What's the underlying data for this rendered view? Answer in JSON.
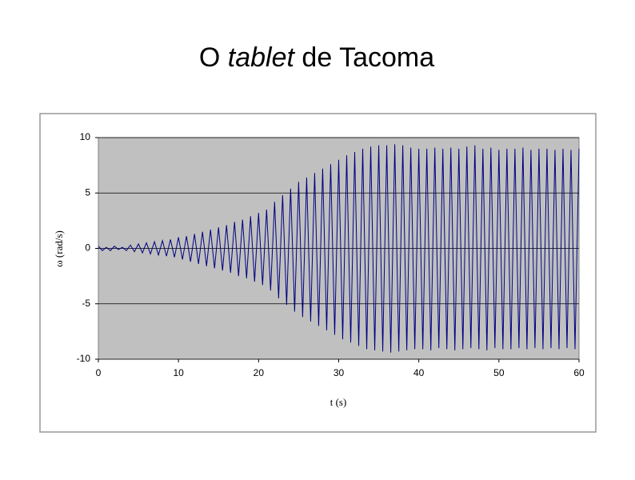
{
  "slide_title": {
    "before": "O",
    "emphasis": "tablet",
    "after": "de Tacoma"
  },
  "chart_data": {
    "type": "line",
    "x_label": "t (s)",
    "y_label": "ω (rad/s)",
    "xlim": [
      0,
      60
    ],
    "xticks": [
      0,
      10,
      20,
      30,
      40,
      50,
      60
    ],
    "ylim": [
      -10,
      10
    ],
    "yticks": [
      -10,
      -5,
      0,
      5,
      10
    ],
    "grid": true,
    "plot_background": "#c0c0c0",
    "series": [
      {
        "color": "#000080",
        "x": [
          0,
          0.5,
          1,
          1.5,
          2,
          2.5,
          3,
          3.5,
          4,
          4.5,
          5,
          5.5,
          6,
          6.5,
          7,
          7.5,
          8,
          8.5,
          9,
          9.5,
          10,
          10.5,
          11,
          11.5,
          12,
          12.5,
          13,
          13.5,
          14,
          14.5,
          15,
          15.5,
          16,
          16.5,
          17,
          17.5,
          18,
          18.5,
          19,
          19.5,
          20,
          20.5,
          21,
          21.5,
          22,
          22.5,
          23,
          23.5,
          24,
          24.5,
          25,
          25.5,
          26,
          26.5,
          27,
          27.5,
          28,
          28.5,
          29,
          29.5,
          30,
          30.5,
          31,
          31.5,
          32,
          32.5,
          33,
          33.5,
          34,
          34.5,
          35,
          35.5,
          36,
          36.5,
          37,
          37.5,
          38,
          38.5,
          39,
          39.5,
          40,
          40.5,
          41,
          41.5,
          42,
          42.5,
          43,
          43.5,
          44,
          44.5,
          45,
          45.5,
          46,
          46.5,
          47,
          47.5,
          48,
          48.5,
          49,
          49.5,
          50,
          50.5,
          51,
          51.5,
          52,
          52.5,
          53,
          53.5,
          54,
          54.5,
          55,
          55.5,
          56,
          56.5,
          57,
          57.5,
          58,
          58.5,
          59,
          59.5,
          60
        ],
        "values": [
          0.2,
          -0.2,
          0.1,
          -0.2,
          0.2,
          -0.1,
          0.1,
          -0.2,
          0.3,
          -0.3,
          0.4,
          -0.4,
          0.5,
          -0.5,
          0.6,
          -0.6,
          0.7,
          -0.7,
          0.8,
          -0.8,
          1.0,
          -1.0,
          1.1,
          -1.2,
          1.3,
          -1.4,
          1.5,
          -1.6,
          1.7,
          -1.8,
          1.9,
          -2.0,
          2.1,
          -2.2,
          2.4,
          -2.5,
          2.6,
          -2.7,
          2.9,
          -3.0,
          3.2,
          -3.3,
          3.5,
          -3.8,
          4.2,
          -4.5,
          4.8,
          -5.1,
          5.4,
          -5.7,
          6.0,
          -6.2,
          6.4,
          -6.6,
          6.8,
          -7.0,
          7.2,
          -7.4,
          7.6,
          -7.8,
          8.0,
          -8.2,
          8.4,
          -8.5,
          8.7,
          -8.8,
          9.0,
          -9.1,
          9.2,
          -9.2,
          9.3,
          -9.3,
          9.3,
          -9.4,
          9.4,
          -9.3,
          9.3,
          -9.2,
          9.1,
          -9.1,
          9.0,
          -9.1,
          9.0,
          -9.2,
          9.1,
          -9.0,
          9.0,
          -9.1,
          9.1,
          -9.2,
          9.0,
          -9.1,
          9.2,
          -9.0,
          9.3,
          -9.1,
          9.0,
          -9.2,
          9.1,
          -9.0,
          8.9,
          -9.1,
          9.0,
          -9.1,
          9.0,
          -9.0,
          9.1,
          -9.1,
          8.9,
          -9.0,
          9.0,
          -9.1,
          9.0,
          -9.0,
          8.9,
          -9.1,
          9.0,
          -9.0,
          8.9,
          -9.1,
          9.0
        ]
      }
    ]
  }
}
